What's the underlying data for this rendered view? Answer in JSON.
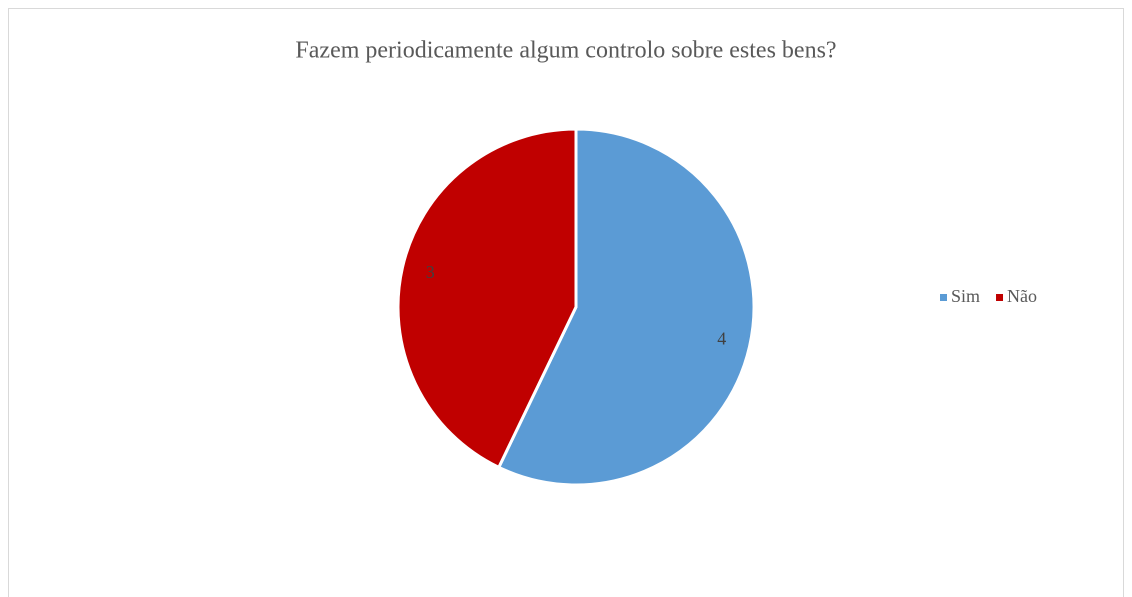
{
  "chart_data": {
    "type": "pie",
    "title": "Fazem periodicamente algum controlo sobre estes bens?",
    "categories": [
      "Sim",
      "Não"
    ],
    "values": [
      4,
      3
    ],
    "colors": [
      "#5b9bd5",
      "#c00000"
    ],
    "legend": "right"
  }
}
